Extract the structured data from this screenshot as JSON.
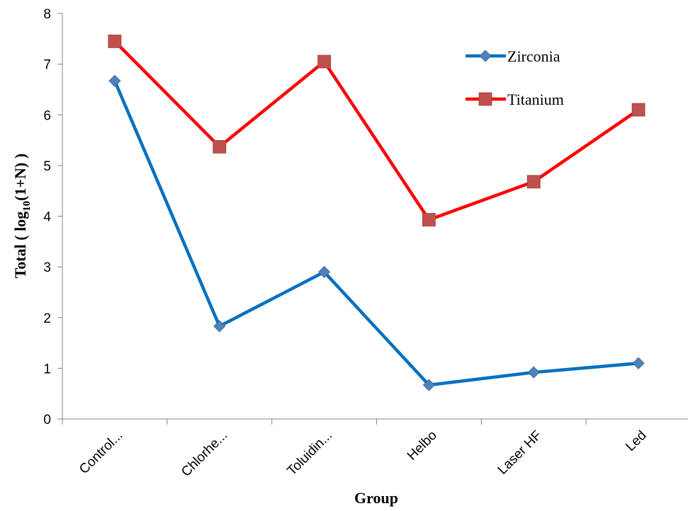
{
  "chart_data": {
    "type": "line",
    "title": "",
    "xlabel": "Group",
    "ylabel": {
      "prefix": "Total ( log",
      "subscript": "10",
      "suffix": "(1+N) )"
    },
    "categories": [
      "Control...",
      "Chlorhe...",
      "Toluidin...",
      "Helbo",
      "Laser HF",
      "Led"
    ],
    "ylim": [
      0,
      8
    ],
    "yticks": [
      "0",
      "1",
      "2",
      "3",
      "4",
      "5",
      "6",
      "7",
      "8"
    ],
    "grid": false,
    "legend_position": "top-right",
    "series": [
      {
        "name": "Zirconia",
        "values": [
          6.67,
          1.83,
          2.9,
          0.67,
          0.92,
          1.1
        ],
        "color": "#0070C0",
        "marker_color": "#4F81BD",
        "marker": "diamond"
      },
      {
        "name": "Titanium",
        "values": [
          7.45,
          5.37,
          7.05,
          3.93,
          4.68,
          6.1
        ],
        "color": "#FF0000",
        "marker_color": "#C0504D",
        "marker": "square"
      }
    ]
  }
}
